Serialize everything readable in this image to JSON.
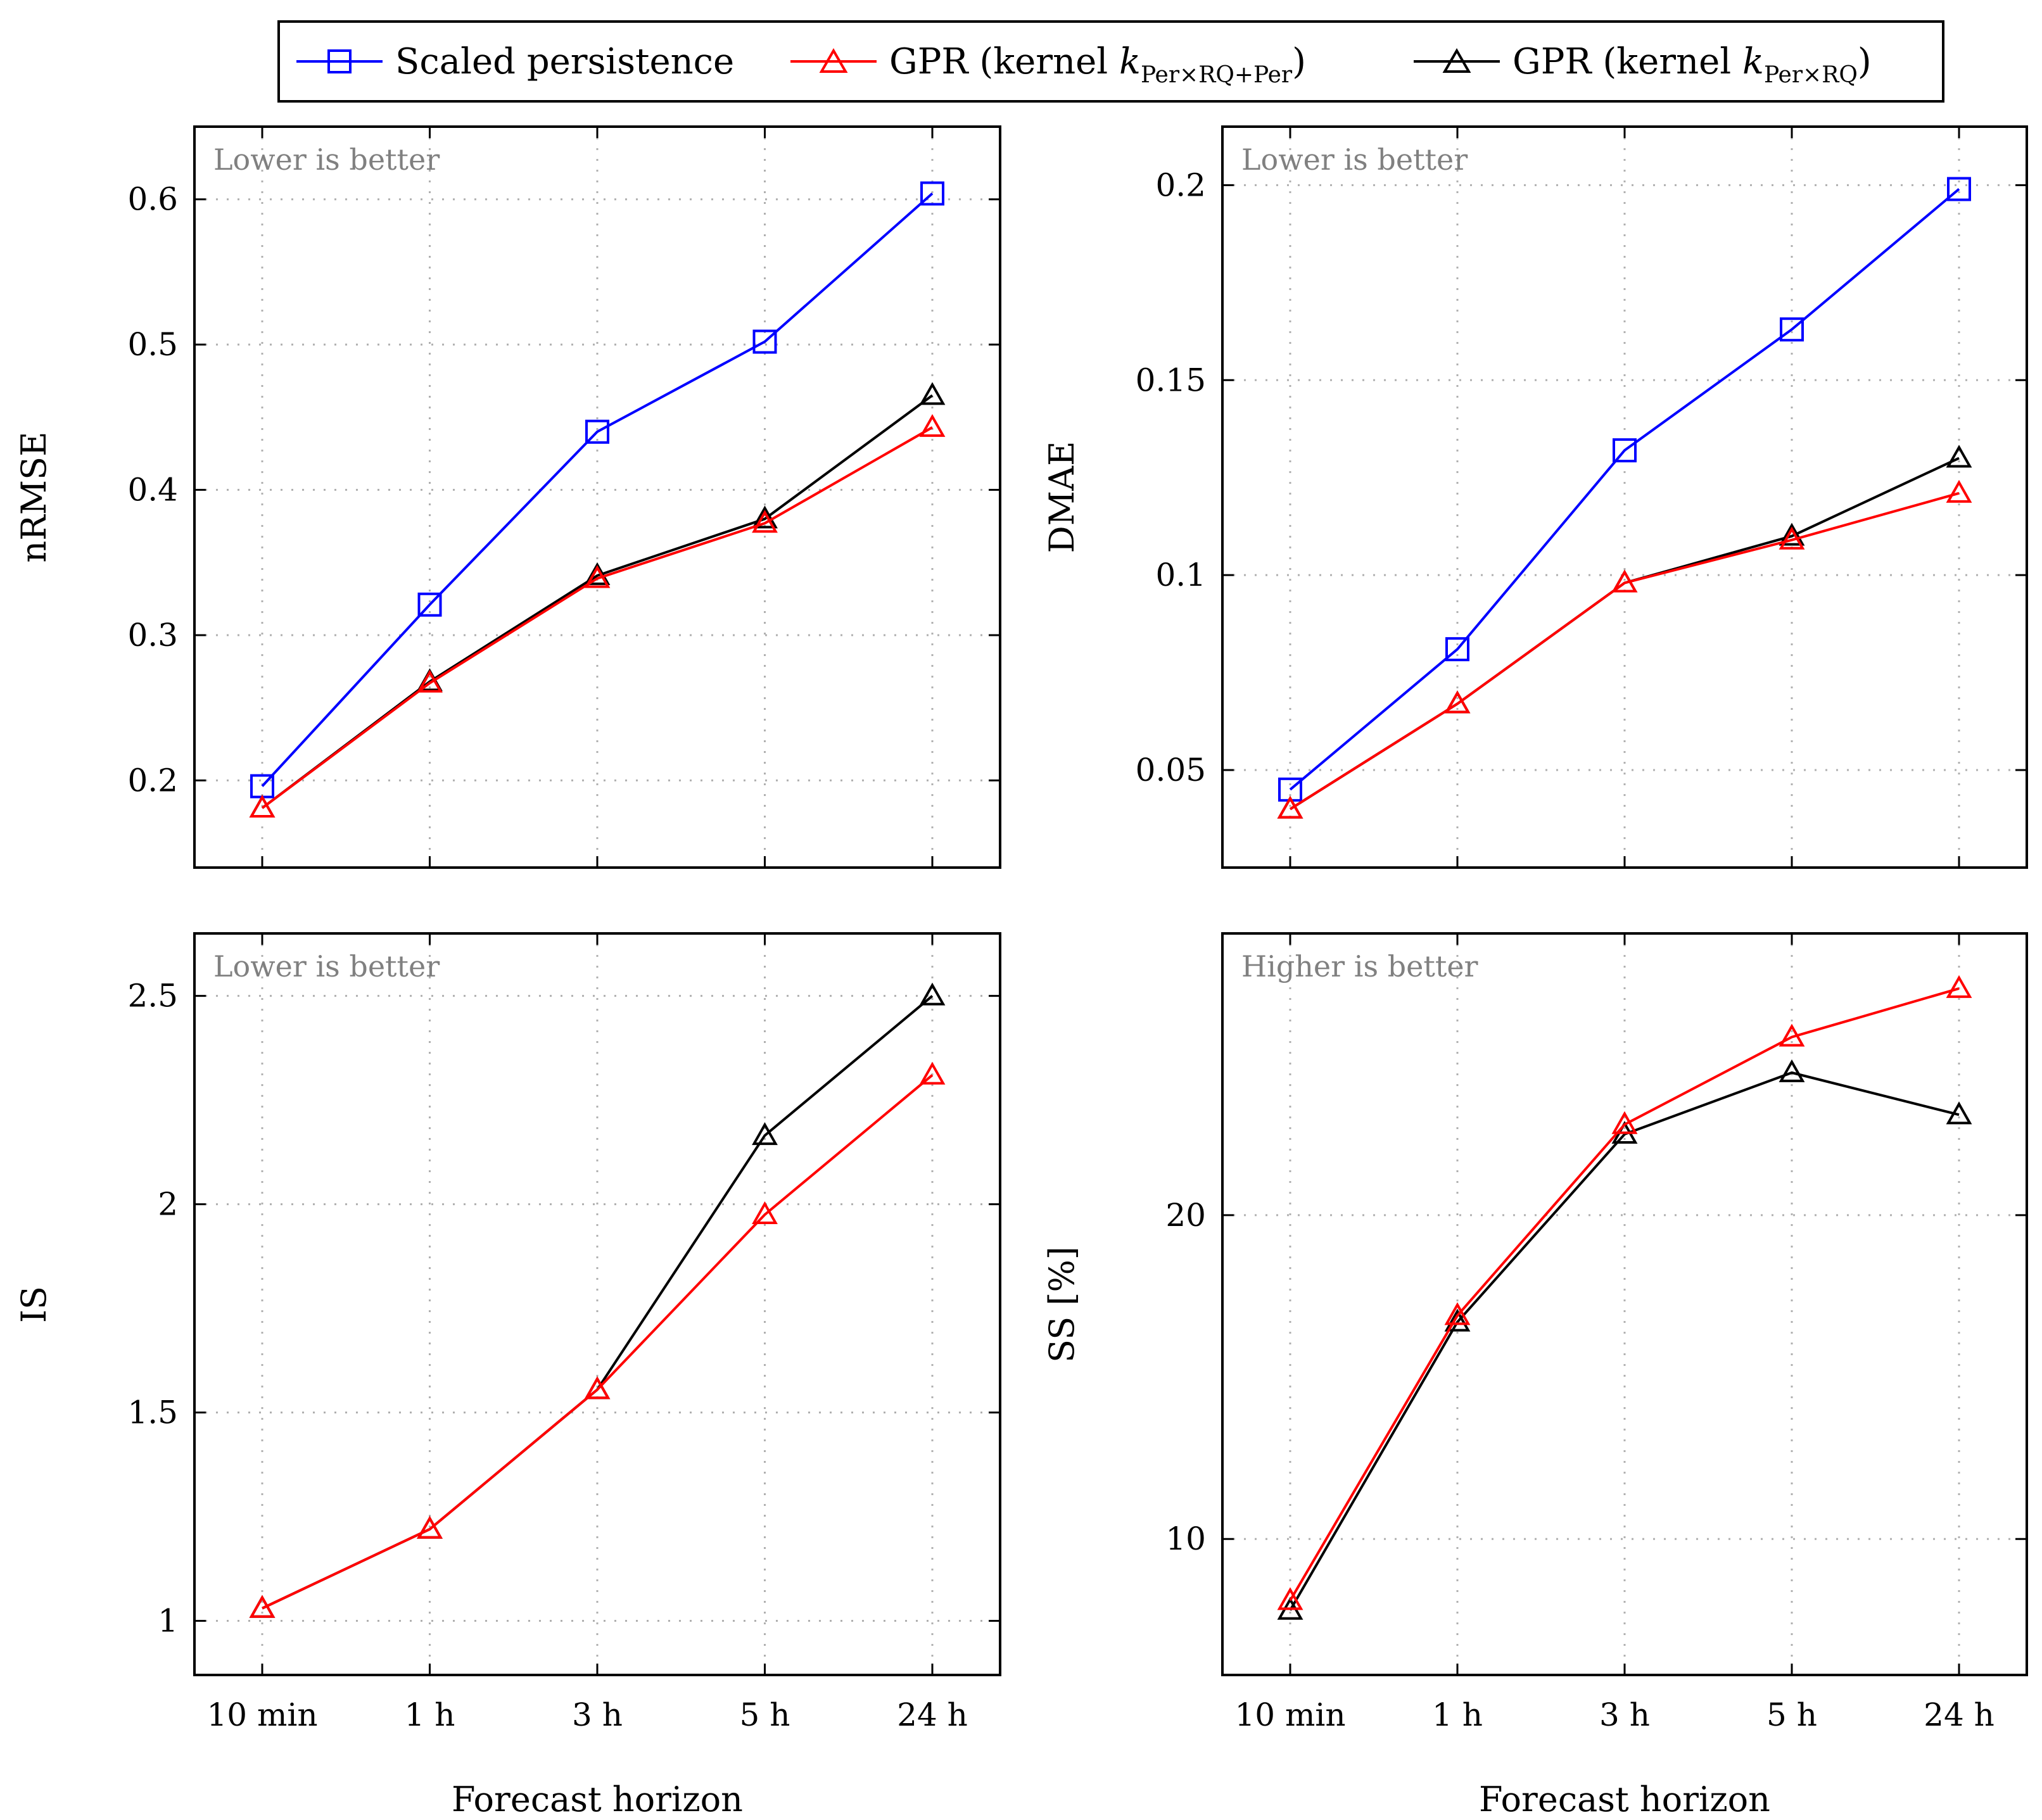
{
  "legend": {
    "entries": [
      {
        "key": "sp",
        "label": "Scaled persistence",
        "color": "#0000ff",
        "marker": "square"
      },
      {
        "key": "gpr1",
        "label": "GPR (kernel ",
        "sub": "Per×RQ+Per",
        "close": ")",
        "color": "#ff0000",
        "marker": "triangle"
      },
      {
        "key": "gpr2",
        "label": "GPR (kernel ",
        "sub": "Per×RQ",
        "close": ")",
        "color": "#000000",
        "marker": "triangle"
      }
    ]
  },
  "chart_data": [
    {
      "type": "line",
      "ylabel": "nRMSE",
      "xlabel": "",
      "annotation": "Lower is better",
      "categories": [
        "10 min",
        "1 h",
        "3 h",
        "5 h",
        "24 h"
      ],
      "ylim": [
        0.14,
        0.65
      ],
      "yticks": [
        0.2,
        0.3,
        0.4,
        0.5,
        0.6
      ],
      "ytick_labels": [
        "0.2",
        "0.3",
        "0.4",
        "0.5",
        "0.6"
      ],
      "series": [
        {
          "name": "Scaled persistence",
          "values": [
            0.196,
            0.321,
            0.44,
            0.502,
            0.604
          ]
        },
        {
          "name": "GPR (kernel k_Per×RQ+Per)",
          "values": [
            0.181,
            0.267,
            0.339,
            0.377,
            0.443
          ]
        },
        {
          "name": "GPR (kernel k_Per×RQ)",
          "values": [
            0.181,
            0.268,
            0.341,
            0.38,
            0.465
          ]
        }
      ]
    },
    {
      "type": "line",
      "ylabel": "DMAE",
      "xlabel": "",
      "annotation": "Lower is better",
      "categories": [
        "10 min",
        "1 h",
        "3 h",
        "5 h",
        "24 h"
      ],
      "ylim": [
        0.025,
        0.215
      ],
      "yticks": [
        0.05,
        0.1,
        0.15,
        0.2
      ],
      "ytick_labels": [
        "0.05",
        "0.1",
        "0.15",
        "0.2"
      ],
      "series": [
        {
          "name": "Scaled persistence",
          "values": [
            0.045,
            0.081,
            0.132,
            0.163,
            0.199
          ]
        },
        {
          "name": "GPR (kernel k_Per×RQ+Per)",
          "values": [
            0.04,
            0.067,
            0.098,
            0.109,
            0.121
          ]
        },
        {
          "name": "GPR (kernel k_Per×RQ)",
          "values": [
            0.04,
            0.067,
            0.098,
            0.11,
            0.13
          ]
        }
      ]
    },
    {
      "type": "line",
      "ylabel": "IS",
      "xlabel": "Forecast horizon",
      "annotation": "Lower is better",
      "categories": [
        "10 min",
        "1 h",
        "3 h",
        "5 h",
        "24 h"
      ],
      "ylim": [
        0.87,
        2.65
      ],
      "yticks": [
        1,
        1.5,
        2,
        2.5
      ],
      "ytick_labels": [
        "1",
        "1.5",
        "2",
        "2.5"
      ],
      "series": [
        {
          "name": "GPR (kernel k_Per×RQ+Per)",
          "values": [
            1.03,
            1.22,
            1.555,
            1.975,
            2.31
          ]
        },
        {
          "name": "GPR (kernel k_Per×RQ)",
          "values": [
            1.03,
            1.22,
            1.555,
            2.165,
            2.5
          ]
        }
      ]
    },
    {
      "type": "line",
      "ylabel": "SS [%]",
      "xlabel": "Forecast horizon",
      "annotation": "Higher is better",
      "categories": [
        "10 min",
        "1 h",
        "3 h",
        "5 h",
        "24 h"
      ],
      "ylim": [
        5.8,
        28.7
      ],
      "yticks": [
        10,
        20
      ],
      "ytick_labels": [
        "10",
        "20"
      ],
      "series": [
        {
          "name": "GPR (kernel k_Per×RQ+Per)",
          "values": [
            8.1,
            16.9,
            22.8,
            25.5,
            27.0
          ]
        },
        {
          "name": "GPR (kernel k_Per×RQ)",
          "values": [
            7.8,
            16.7,
            22.5,
            24.4,
            23.1
          ]
        }
      ]
    }
  ]
}
